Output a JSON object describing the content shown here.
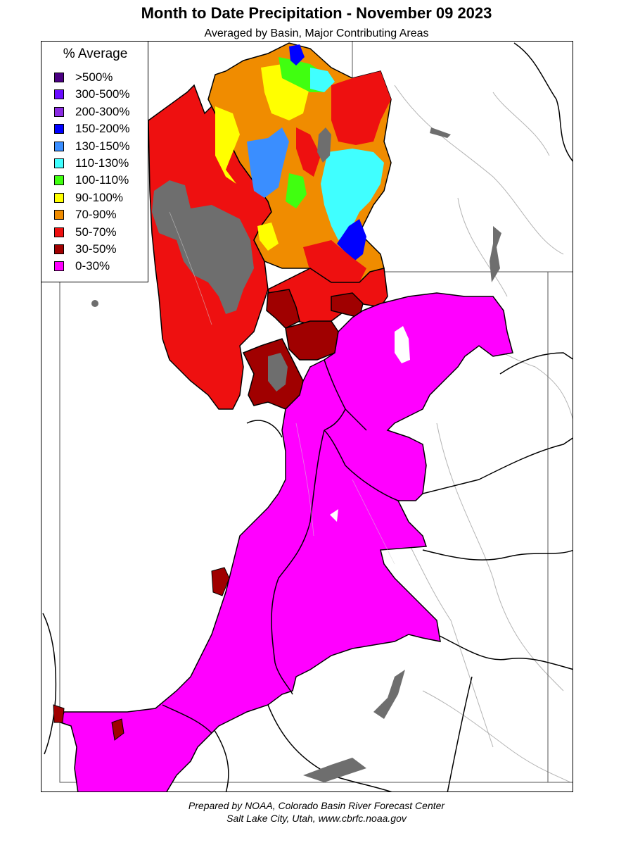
{
  "header": {
    "title": "Month to Date Precipitation - November 09 2023",
    "subtitle": "Averaged by Basin, Major Contributing Areas"
  },
  "legend": {
    "title": "% Average",
    "items": [
      {
        "label": ">500%",
        "color": "#4b0082"
      },
      {
        "label": "300-500%",
        "color": "#6a0dff"
      },
      {
        "label": "200-300%",
        "color": "#8a2be2"
      },
      {
        "label": "150-200%",
        "color": "#0000ff"
      },
      {
        "label": "130-150%",
        "color": "#3a8eff"
      },
      {
        "label": "110-130%",
        "color": "#40ffff"
      },
      {
        "label": "100-110%",
        "color": "#40ff10"
      },
      {
        "label": "90-100%",
        "color": "#ffff00"
      },
      {
        "label": "70-90%",
        "color": "#f08c00"
      },
      {
        "label": "50-70%",
        "color": "#ee1010"
      },
      {
        "label": "30-50%",
        "color": "#a00000"
      },
      {
        "label": "0-30%",
        "color": "#ff00ff"
      }
    ]
  },
  "colors": {
    "no_data": "#6e6e6e",
    "background": "#ffffff",
    "boundary": "#000000",
    "stream": "#b4b4b4"
  },
  "footer": {
    "line1": "Prepared by NOAA, Colorado Basin River Forecast Center",
    "line2": "Salt Lake City, Utah, www.cbrfc.noaa.gov"
  }
}
